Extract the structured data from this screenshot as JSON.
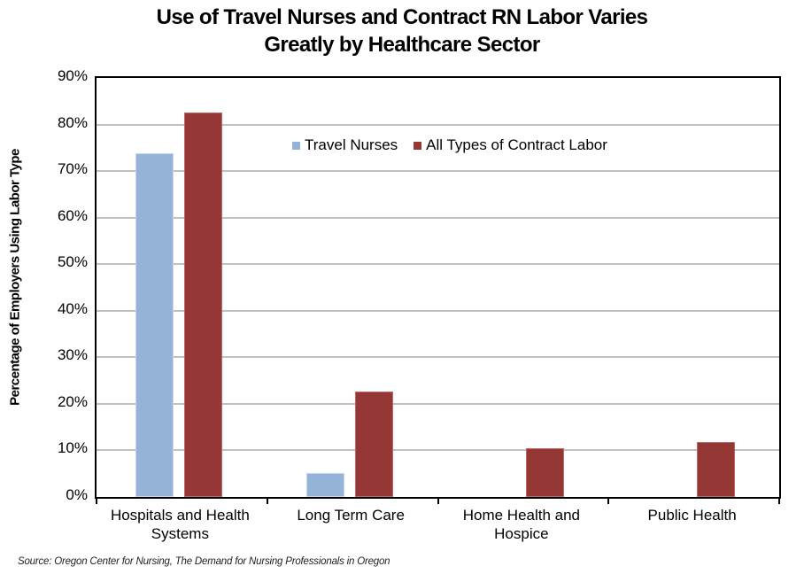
{
  "chart_data": {
    "type": "bar",
    "title": "Use of Travel Nurses and Contract RN Labor Varies Greatly by Healthcare Sector",
    "title_lines": [
      "Use of Travel Nurses and Contract RN Labor Varies",
      "Greatly by Healthcare Sector"
    ],
    "xlabel": "",
    "ylabel": "Percentage of Employers Using Labor Type",
    "ylim": [
      0,
      90
    ],
    "yticks": [
      "0%",
      "10%",
      "20%",
      "30%",
      "40%",
      "50%",
      "60%",
      "70%",
      "80%",
      "90%"
    ],
    "grid": true,
    "legend_position": "top-center inside plot",
    "categories": [
      "Hospitals and Health Systems",
      "Long Term Care",
      "Home Health and Hospice",
      "Public Health"
    ],
    "category_lines": [
      [
        "Hospitals and Health",
        "Systems"
      ],
      [
        "Long Term Care"
      ],
      [
        "Home Health and",
        "Hospice"
      ],
      [
        "Public Health"
      ]
    ],
    "series": [
      {
        "name": "Travel Nurses",
        "color": "#95b3d7",
        "values": [
          73.8,
          5.1,
          0,
          0
        ]
      },
      {
        "name": "All Types of Contract Labor",
        "color": "#953735",
        "values": [
          82.5,
          22.6,
          10.5,
          11.8
        ]
      }
    ],
    "source": "Source:  Oregon Center for Nursing, The Demand for Nursing Professionals in Oregon"
  }
}
